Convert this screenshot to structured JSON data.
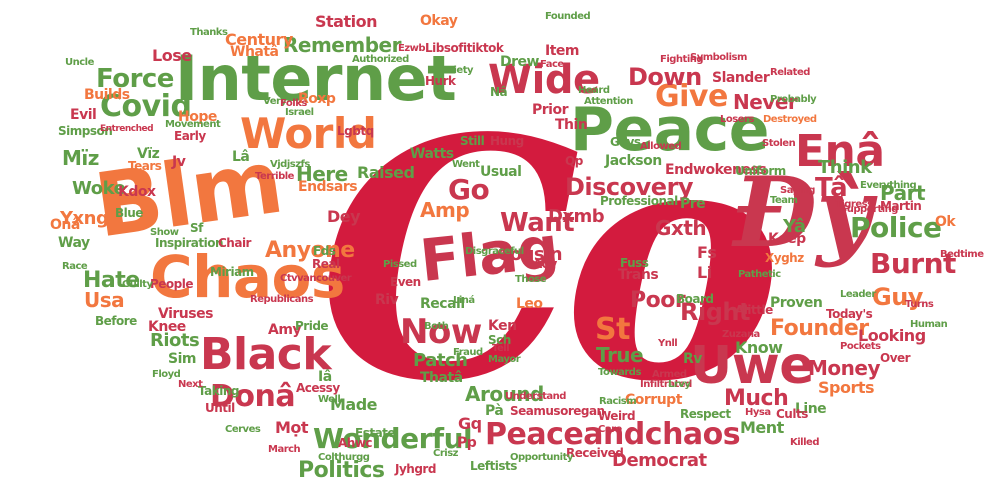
{
  "colors": {
    "crimson": "#d31b3e",
    "red": "#c9374f",
    "orange": "#f2773f",
    "green": "#5f9e48",
    "pink": "#d95b78"
  },
  "words": {
    "co": "Co",
    "dy": "Đỳ",
    "blm": "Blm",
    "internet": "Internet",
    "peace": "Peace",
    "chaos": "Chaos",
    "flag": "Flag",
    "uwe": "Uwe",
    "black": "Black",
    "world": "World",
    "wide": "Wide",
    "peaceandchaos": "Peaceandchaos",
    "ena": "Enâ",
    "covid": "Covid",
    "now": "Now",
    "give": "Give",
    "wonderful": "Wonderful",
    "dona": "Donâ",
    "burnt": "Burnt",
    "police": "Police",
    "force": "Force",
    "st": "St",
    "remember": "Remember",
    "discovery": "Discovery",
    "want": "Want",
    "go": "Go",
    "down": "Down",
    "anyone": "Anyone",
    "hate": "Hate",
    "guy": "Guy",
    "founder": "Founder",
    "right": "Right",
    "politics": "Politics",
    "money": "Money",
    "amp": "Amp",
    "true": "True",
    "much": "Much",
    "around": "Around",
    "patch": "Patch",
    "poor": "Poor",
    "cousin": "Cousin",
    "never": "Never",
    "part": "Part",
    "ta": "Tâ",
    "here": "Here",
    "woke": "Woke",
    "usa": "Usa",
    "think": "Think",
    "democrat": "Democrat",
    "riots": "Riots",
    "dey": "Dey",
    "knee": "Knee",
    "looking": "Looking",
    "sports": "Sports",
    "know": "Know",
    "century": "Century",
    "station": "Station",
    "raised": "Raised",
    "dxmb": "Dxmb",
    "gxth": "Gxth",
    "endwokeness": "Endwokeness",
    "ya": "Yâ",
    "hope": "Hope",
    "lose": "Lose",
    "builds": "Builds",
    "evil": "Evil",
    "simpson": "Simpson",
    "miz": "Mïz",
    "yxng": "Yxng",
    "kdox": "Kdox",
    "viz": "Vïz",
    "endsars": "Endsars",
    "watts": "Watts",
    "usual": "Usual",
    "jackson": "Jackson",
    "libsofitiktok": "Libsofitiktok",
    "drew": "Drew",
    "item": "Item",
    "thin": "Thin",
    "fs": "Fs",
    "li": "Li",
    "keep": "Keep",
    "martin": "Martin",
    "ok": "Ok",
    "over": "Over",
    "pa": "Pà",
    "mot": "Mọt",
    "made": "Made",
    "ment": "Ment",
    "line": "Line",
    "cults": "Cults",
    "recall": "Recall",
    "leo": "Leo",
    "ken": "Ken",
    "sch": "Sch",
    "riv": "Riv",
    "sim": "Sim",
    "way": "Way",
    "ona": "Onâ",
    "blue": "Blue",
    "miriam": "Miriam",
    "amy": "Amy",
    "pride": "Pride",
    "viruses": "Viruses",
    "taking": "Taking",
    "until": "Until",
    "estate": "Estate",
    "gq": "Gq",
    "pp": "Pp",
    "seamusoregan": "Seamusoregan",
    "corrupt": "Corrupt",
    "uniform": "Uniform",
    "xyghz": "Xyghz",
    "proven": "Proven",
    "alittle": "Alittle",
    "board": "Board",
    "rv": "Rv",
    "today": "Today's",
    "pre": "Pre",
    "roxp": "Roxp",
    "lgbtq": "Lgbtq",
    "wha": "Whatâ",
    "jv": "Jv",
    "la": "Lâ",
    "tha": "Thatâ",
    "ia": "Iâ",
    "aoy": "Aoy",
    "trans": "Trans",
    "fuss": "Fuss",
    "ahwc": "Ahwc",
    "jyhgrd": "Jyhgrd",
    "colthurgg": "Colthurgg",
    "leftists": "Leftists",
    "received": "Received",
    "respect": "Respect",
    "race": "Race",
    "people": "People",
    "inspiration": "Inspiration",
    "chair": "Chair",
    "hung": "Hung",
    "still": "Still",
    "prior": "Prior",
    "hurk": "Hurk",
    "face": "Face",
    "founded": "Founded",
    "okay": "Okay",
    "slander": "Slander",
    "fight": "Fighting",
    "related": "Related",
    "probably": "Probably",
    "tigress": "Tigress",
    "dey2": "Dey",
    "sf": "Sf",
    "real": "Real",
    "fds": "Fds",
    "tears": "Tears",
    "vjdjsz": "Vjdjszfs",
    "terrible": "Terrible",
    "israel": "Israel",
    "qp": "Qp",
    "gays": "Gays",
    "professional": "Professional",
    "team": "Team",
    "saying": "Saying",
    "liná": "Liná",
    "before": "Before",
    "next": "Next",
    "floyd": "Floyd",
    "march": "March",
    "cerves": "Cerves",
    "mayor": "Mayor",
    "tell": "Tell",
    "fraud": "Fraud",
    "towards": "Towards",
    "armed": "Armed",
    "weird": "Weird",
    "racism": "Racism",
    "care": "Care",
    "crisz": "Crisz",
    "understand": "Understand",
    "opportunity": "Opportunity",
    "killed": "Killed",
    "turns": "Turns",
    "human": "Human",
    "pockets": "Pockets",
    "zuzana": "Zuzana",
    "pathetic": "Pathetic",
    "infiltrated": "Infiltrated",
    "bedtime": "Bedtime",
    "everything": "Everything",
    "supporting": "Supporting",
    "uncle": "Uncle",
    "thanks": "Thanks",
    "eswb": "Ezwb",
    "authorized": "Authorized",
    "society": "Society",
    "symbolism": "Symbolism",
    "heard": "Heard",
    "attention": "Attention",
    "losers": "Losers",
    "destroyed": "Destroyed",
    "stolen": "Stolen",
    "ctvvancouver": "Ctvvancouver",
    "republicans": "Republicans",
    "disgraceful": "Disgraceful",
    "pissed": "Pissed",
    "even": "Even",
    "both": "Both",
    "those": "Those",
    "went": "Went",
    "usual2": "Usual",
    "allowed": "Allowed",
    "leader": "Leader",
    "over2": "Over",
    "ne": "Nâ",
    "very": "Very",
    "folks": "Folks",
    "early": "Early",
    "movement": "Movement",
    "entrenched": "Entrenched",
    "show": "Show",
    "guilty": "Guilty",
    "acessy": "Acessy",
    "well": "Well",
    "acty": "Ac",
    "yiil": "Ynll",
    "lrvy": "Lrvy",
    "hysa": "Hysa"
  }
}
